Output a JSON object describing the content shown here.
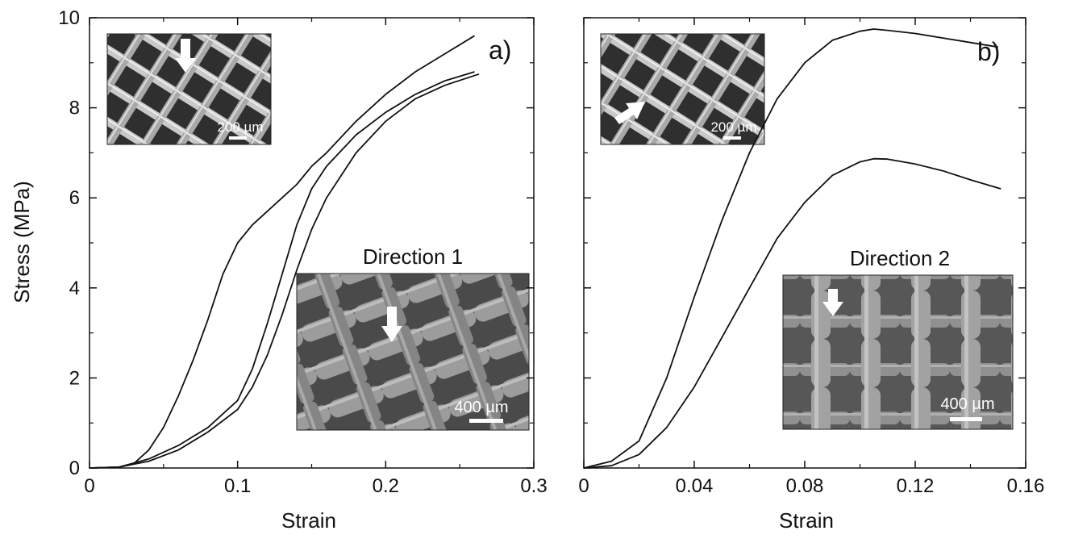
{
  "chart_data": [
    {
      "type": "line",
      "panel_label": "a)",
      "xlabel": "Strain",
      "ylabel": "Stress (MPa)",
      "xlim": [
        0,
        0.3
      ],
      "ylim": [
        0,
        10
      ],
      "x_ticks": [
        "0",
        "0.1",
        "0.2",
        "0.3"
      ],
      "y_ticks": [
        "0",
        "2",
        "4",
        "6",
        "8",
        "10"
      ],
      "grid": false,
      "series": [
        {
          "x": [
            0,
            0.02,
            0.03,
            0.04,
            0.05,
            0.06,
            0.07,
            0.08,
            0.09,
            0.1,
            0.11,
            0.12,
            0.13,
            0.14,
            0.15,
            0.16,
            0.18,
            0.2,
            0.22,
            0.24,
            0.26
          ],
          "y": [
            0,
            0.02,
            0.1,
            0.4,
            0.9,
            1.6,
            2.4,
            3.3,
            4.3,
            5.0,
            5.4,
            5.7,
            6.0,
            6.3,
            6.7,
            7.0,
            7.7,
            8.3,
            8.8,
            9.2,
            9.6
          ]
        },
        {
          "x": [
            0,
            0.02,
            0.04,
            0.06,
            0.08,
            0.1,
            0.11,
            0.12,
            0.13,
            0.14,
            0.15,
            0.16,
            0.18,
            0.2,
            0.22,
            0.24,
            0.26
          ],
          "y": [
            0,
            0.02,
            0.2,
            0.5,
            0.9,
            1.5,
            2.2,
            3.2,
            4.3,
            5.4,
            6.2,
            6.7,
            7.4,
            7.9,
            8.3,
            8.6,
            8.8
          ]
        },
        {
          "x": [
            0,
            0.02,
            0.04,
            0.06,
            0.08,
            0.1,
            0.11,
            0.12,
            0.13,
            0.14,
            0.15,
            0.16,
            0.18,
            0.2,
            0.22,
            0.24,
            0.263
          ],
          "y": [
            0,
            0.02,
            0.15,
            0.4,
            0.8,
            1.3,
            1.8,
            2.5,
            3.4,
            4.4,
            5.3,
            6.0,
            7.0,
            7.7,
            8.2,
            8.5,
            8.75
          ]
        }
      ],
      "annotations": [
        {
          "text": "Direction 1"
        },
        {
          "text": "200 µm",
          "kind": "scale-bar"
        },
        {
          "text": "400 µm",
          "kind": "scale-bar"
        }
      ]
    },
    {
      "type": "line",
      "panel_label": "b)",
      "xlabel": "Strain",
      "ylabel": "",
      "xlim": [
        0,
        0.16
      ],
      "ylim": [
        0,
        10
      ],
      "x_ticks": [
        "0",
        "0.04",
        "0.08",
        "0.12",
        "0.16"
      ],
      "y_ticks": [],
      "grid": false,
      "series": [
        {
          "x": [
            0,
            0.01,
            0.02,
            0.03,
            0.04,
            0.05,
            0.06,
            0.07,
            0.08,
            0.09,
            0.1,
            0.105,
            0.11,
            0.12,
            0.13,
            0.14,
            0.15
          ],
          "y": [
            0,
            0.15,
            0.6,
            2.0,
            3.8,
            5.5,
            7.0,
            8.2,
            9.0,
            9.5,
            9.7,
            9.75,
            9.72,
            9.65,
            9.55,
            9.45,
            9.35
          ]
        },
        {
          "x": [
            0,
            0.01,
            0.02,
            0.03,
            0.04,
            0.05,
            0.06,
            0.07,
            0.08,
            0.09,
            0.1,
            0.105,
            0.11,
            0.12,
            0.13,
            0.14,
            0.151
          ],
          "y": [
            0,
            0.05,
            0.3,
            0.9,
            1.8,
            2.9,
            4.0,
            5.1,
            5.9,
            6.5,
            6.8,
            6.87,
            6.86,
            6.75,
            6.6,
            6.4,
            6.2
          ]
        }
      ],
      "annotations": [
        {
          "text": "Direction 2"
        },
        {
          "text": "200 µm",
          "kind": "scale-bar"
        },
        {
          "text": "400 µm",
          "kind": "scale-bar"
        }
      ]
    }
  ]
}
